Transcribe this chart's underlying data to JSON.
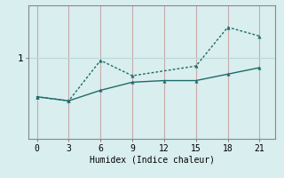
{
  "xlabel": "Humidex (Indice chaleur)",
  "bg_color": "#d9eeee",
  "line1_x": [
    0,
    3,
    6,
    9,
    12,
    15,
    18,
    21
  ],
  "line1_y": [
    0.52,
    0.47,
    0.6,
    0.7,
    0.72,
    0.72,
    0.8,
    0.88
  ],
  "line2_x": [
    0,
    3,
    6,
    9,
    15,
    18,
    21
  ],
  "line2_y": [
    0.52,
    0.47,
    0.97,
    0.78,
    0.9,
    1.38,
    1.27
  ],
  "line_color": "#1d6b6b",
  "xlim": [
    -0.8,
    22.5
  ],
  "ylim": [
    0.0,
    1.65
  ],
  "xticks": [
    0,
    3,
    6,
    9,
    12,
    15,
    18,
    21
  ],
  "ytick_val": 1.0,
  "ytick_label": "1",
  "hgrid_color": "#b8d8d8",
  "vgrid_color": "#c8aaaa",
  "tick_fontsize": 7,
  "xlabel_fontsize": 7
}
